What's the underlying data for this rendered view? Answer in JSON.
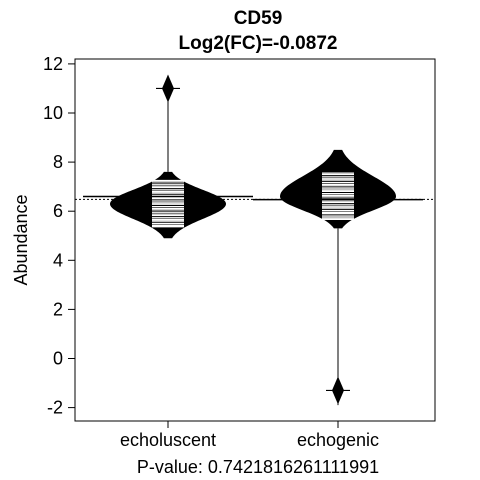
{
  "chart_data": {
    "type": "beanplot",
    "title": [
      "CD59",
      "Log2(FC)=-0.0872"
    ],
    "ylabel": "Abundance",
    "footer": "P-value: 0.7421816261111991",
    "ylim": [
      -2.5,
      12.5
    ],
    "yticks": [
      -2,
      0,
      2,
      4,
      6,
      8,
      10,
      12
    ],
    "overall_mean": 6.48,
    "groups": [
      {
        "name": "echoluscent",
        "mean": 6.6,
        "density_center": 6.3,
        "spread_low": 4.9,
        "spread_high": 7.6,
        "whisker_high": 11.5,
        "outliers": [
          11.0
        ]
      },
      {
        "name": "echogenic",
        "mean": 6.47,
        "density_center": 6.6,
        "spread_low": 5.3,
        "spread_high": 8.5,
        "whisker_low": -1.9,
        "outliers": [
          -1.3,
          7.9
        ]
      }
    ]
  }
}
